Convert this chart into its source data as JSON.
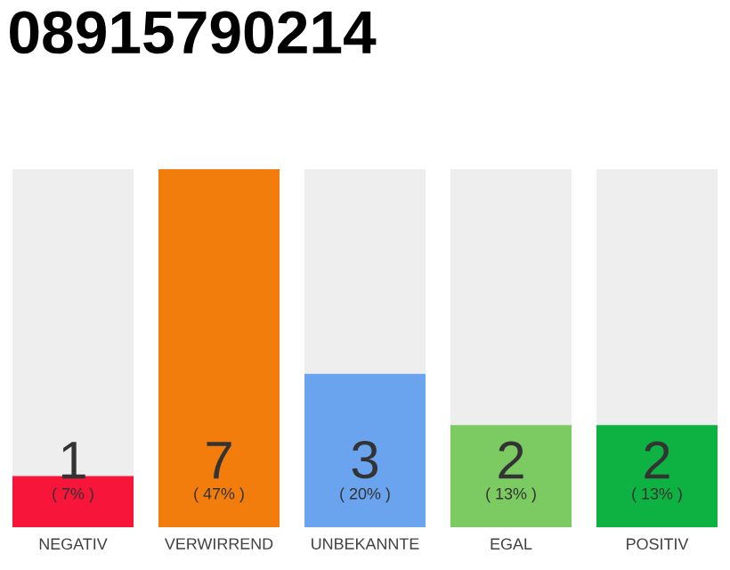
{
  "chart_data": {
    "type": "bar",
    "title": "08915790214",
    "stacked": true,
    "categories": [
      "NEGATIV",
      "VERWIRREND",
      "UNBEKANNTE",
      "EGAL",
      "POSITIV"
    ],
    "series": [
      {
        "colors": [
          "#f8153a",
          "#f27d0c",
          "#6aa3ee",
          "#7cca62",
          "#0db243"
        ],
        "values": [
          1,
          7,
          3,
          2,
          2
        ],
        "value_labels": [
          "1",
          "7",
          "3",
          "2",
          "2"
        ]
      },
      {
        "color": "#eeeeee",
        "values": [
          6,
          0,
          4,
          5,
          5
        ]
      }
    ],
    "annotations": [
      "( 7% )",
      "( 47% )",
      "( 20% )",
      "( 13% )",
      "( 13% )"
    ]
  }
}
